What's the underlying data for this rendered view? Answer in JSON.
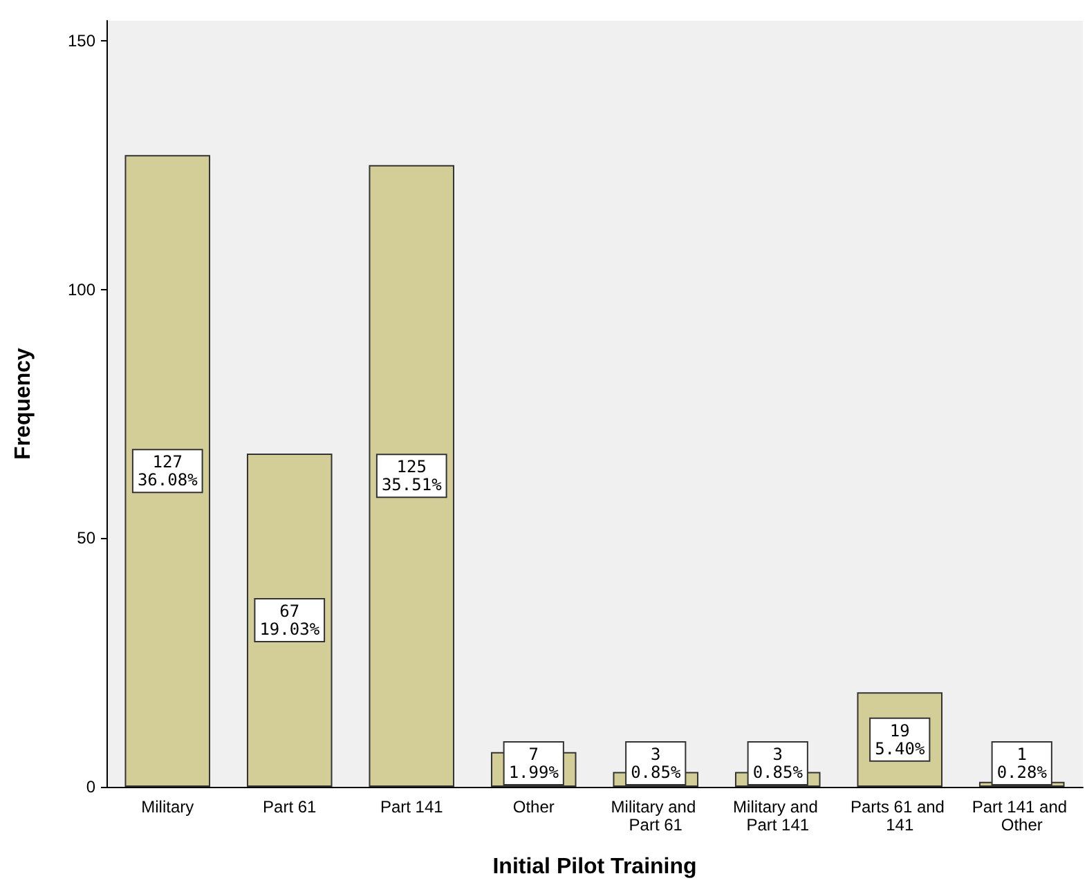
{
  "chart_data": {
    "type": "bar",
    "xlabel": "Initial Pilot Training",
    "ylabel": "Frequency",
    "categories": [
      "Military",
      "Part 61",
      "Part 141",
      "Other",
      "Military and Part 61",
      "Military and Part 141",
      "Parts 61 and 141",
      "Part 141 and Other"
    ],
    "values": [
      127,
      67,
      125,
      7,
      3,
      3,
      19,
      1
    ],
    "value_labels": [
      "127\n36.08%",
      "67\n19.03%",
      "125\n35.51%",
      "7\n1.99%",
      "3\n0.85%",
      "3\n0.85%",
      "19\n5.40%",
      "1\n0.28%"
    ],
    "color": "#d3ce98",
    "ylim": [
      0,
      154
    ],
    "yticks": [
      0,
      50,
      100,
      150
    ]
  }
}
